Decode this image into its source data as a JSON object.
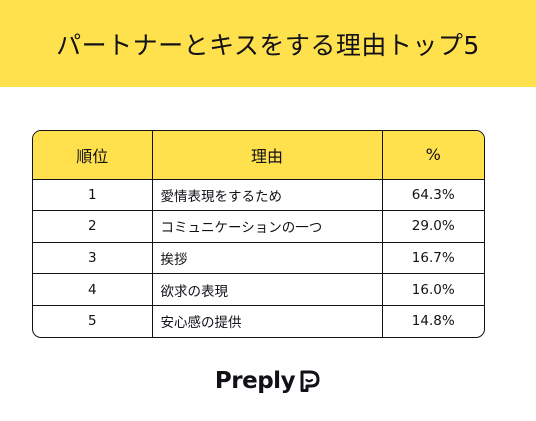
{
  "colors": {
    "accent": "#FFE04D",
    "text": "#121117",
    "background": "#FFFFFF"
  },
  "banner": {
    "title": "パートナーとキスをする理由トップ5"
  },
  "table": {
    "headers": {
      "rank": "順位",
      "reason": "理由",
      "percent": "%"
    },
    "rows": [
      {
        "rank": "1",
        "reason": "愛情表現をするため",
        "percent": "64.3%"
      },
      {
        "rank": "2",
        "reason": "コミュニケーションの一つ",
        "percent": "29.0%"
      },
      {
        "rank": "3",
        "reason": "挨拶",
        "percent": "16.7%"
      },
      {
        "rank": "4",
        "reason": "欲求の表現",
        "percent": "16.0%"
      },
      {
        "rank": "5",
        "reason": "安心感の提供",
        "percent": "14.8%"
      }
    ]
  },
  "brand": {
    "name": "Preply",
    "icon": "preply-logo-icon"
  }
}
